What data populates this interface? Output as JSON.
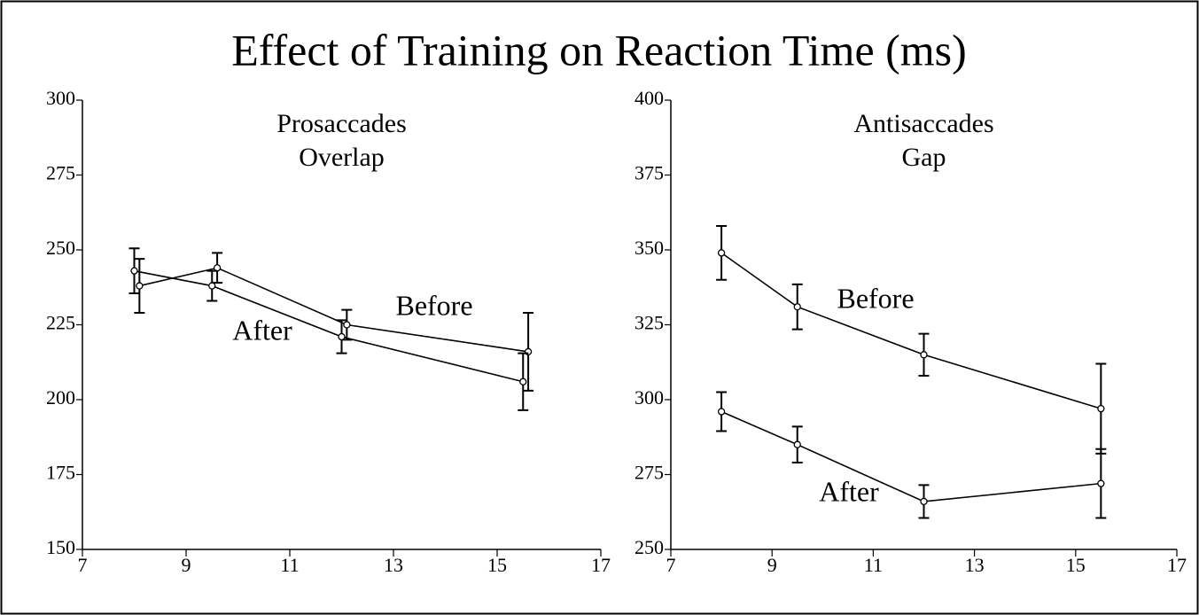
{
  "title": "Effect of Training on Reaction Time (ms)",
  "chart_data": [
    {
      "type": "line",
      "subtitle": [
        "Prosaccades",
        "Overlap"
      ],
      "xlim": [
        7,
        17
      ],
      "xticks": [
        7,
        9,
        11,
        13,
        15,
        17
      ],
      "ylim": [
        150,
        300
      ],
      "yticks": [
        150,
        175,
        200,
        225,
        250,
        275,
        300
      ],
      "series": [
        {
          "name": "Before",
          "color": "#000000",
          "x": [
            8.1,
            9.6,
            12.1,
            15.6
          ],
          "values": [
            238,
            244,
            225,
            216
          ],
          "errors": [
            9,
            5,
            5,
            13
          ]
        },
        {
          "name": "After",
          "color": "#000000",
          "x": [
            8,
            9.5,
            12,
            15.5
          ],
          "values": [
            243,
            238,
            221,
            206
          ],
          "errors": [
            7.5,
            5,
            5.5,
            9.5
          ]
        }
      ]
    },
    {
      "type": "line",
      "subtitle": [
        "Antisaccades",
        "Gap"
      ],
      "xlim": [
        7,
        17
      ],
      "xticks": [
        7,
        9,
        11,
        13,
        15,
        17
      ],
      "ylim": [
        250,
        400
      ],
      "yticks": [
        250,
        275,
        300,
        325,
        350,
        375,
        400
      ],
      "series": [
        {
          "name": "Before",
          "color": "#000000",
          "x": [
            8,
            9.5,
            12,
            15.5
          ],
          "values": [
            349,
            331,
            315,
            297
          ],
          "errors": [
            9,
            7.5,
            7,
            15
          ]
        },
        {
          "name": "After",
          "color": "#000000",
          "x": [
            8,
            9.5,
            12,
            15.5
          ],
          "values": [
            296,
            285,
            266,
            272
          ],
          "errors": [
            6.5,
            6,
            5.5,
            11.5
          ]
        }
      ]
    }
  ]
}
